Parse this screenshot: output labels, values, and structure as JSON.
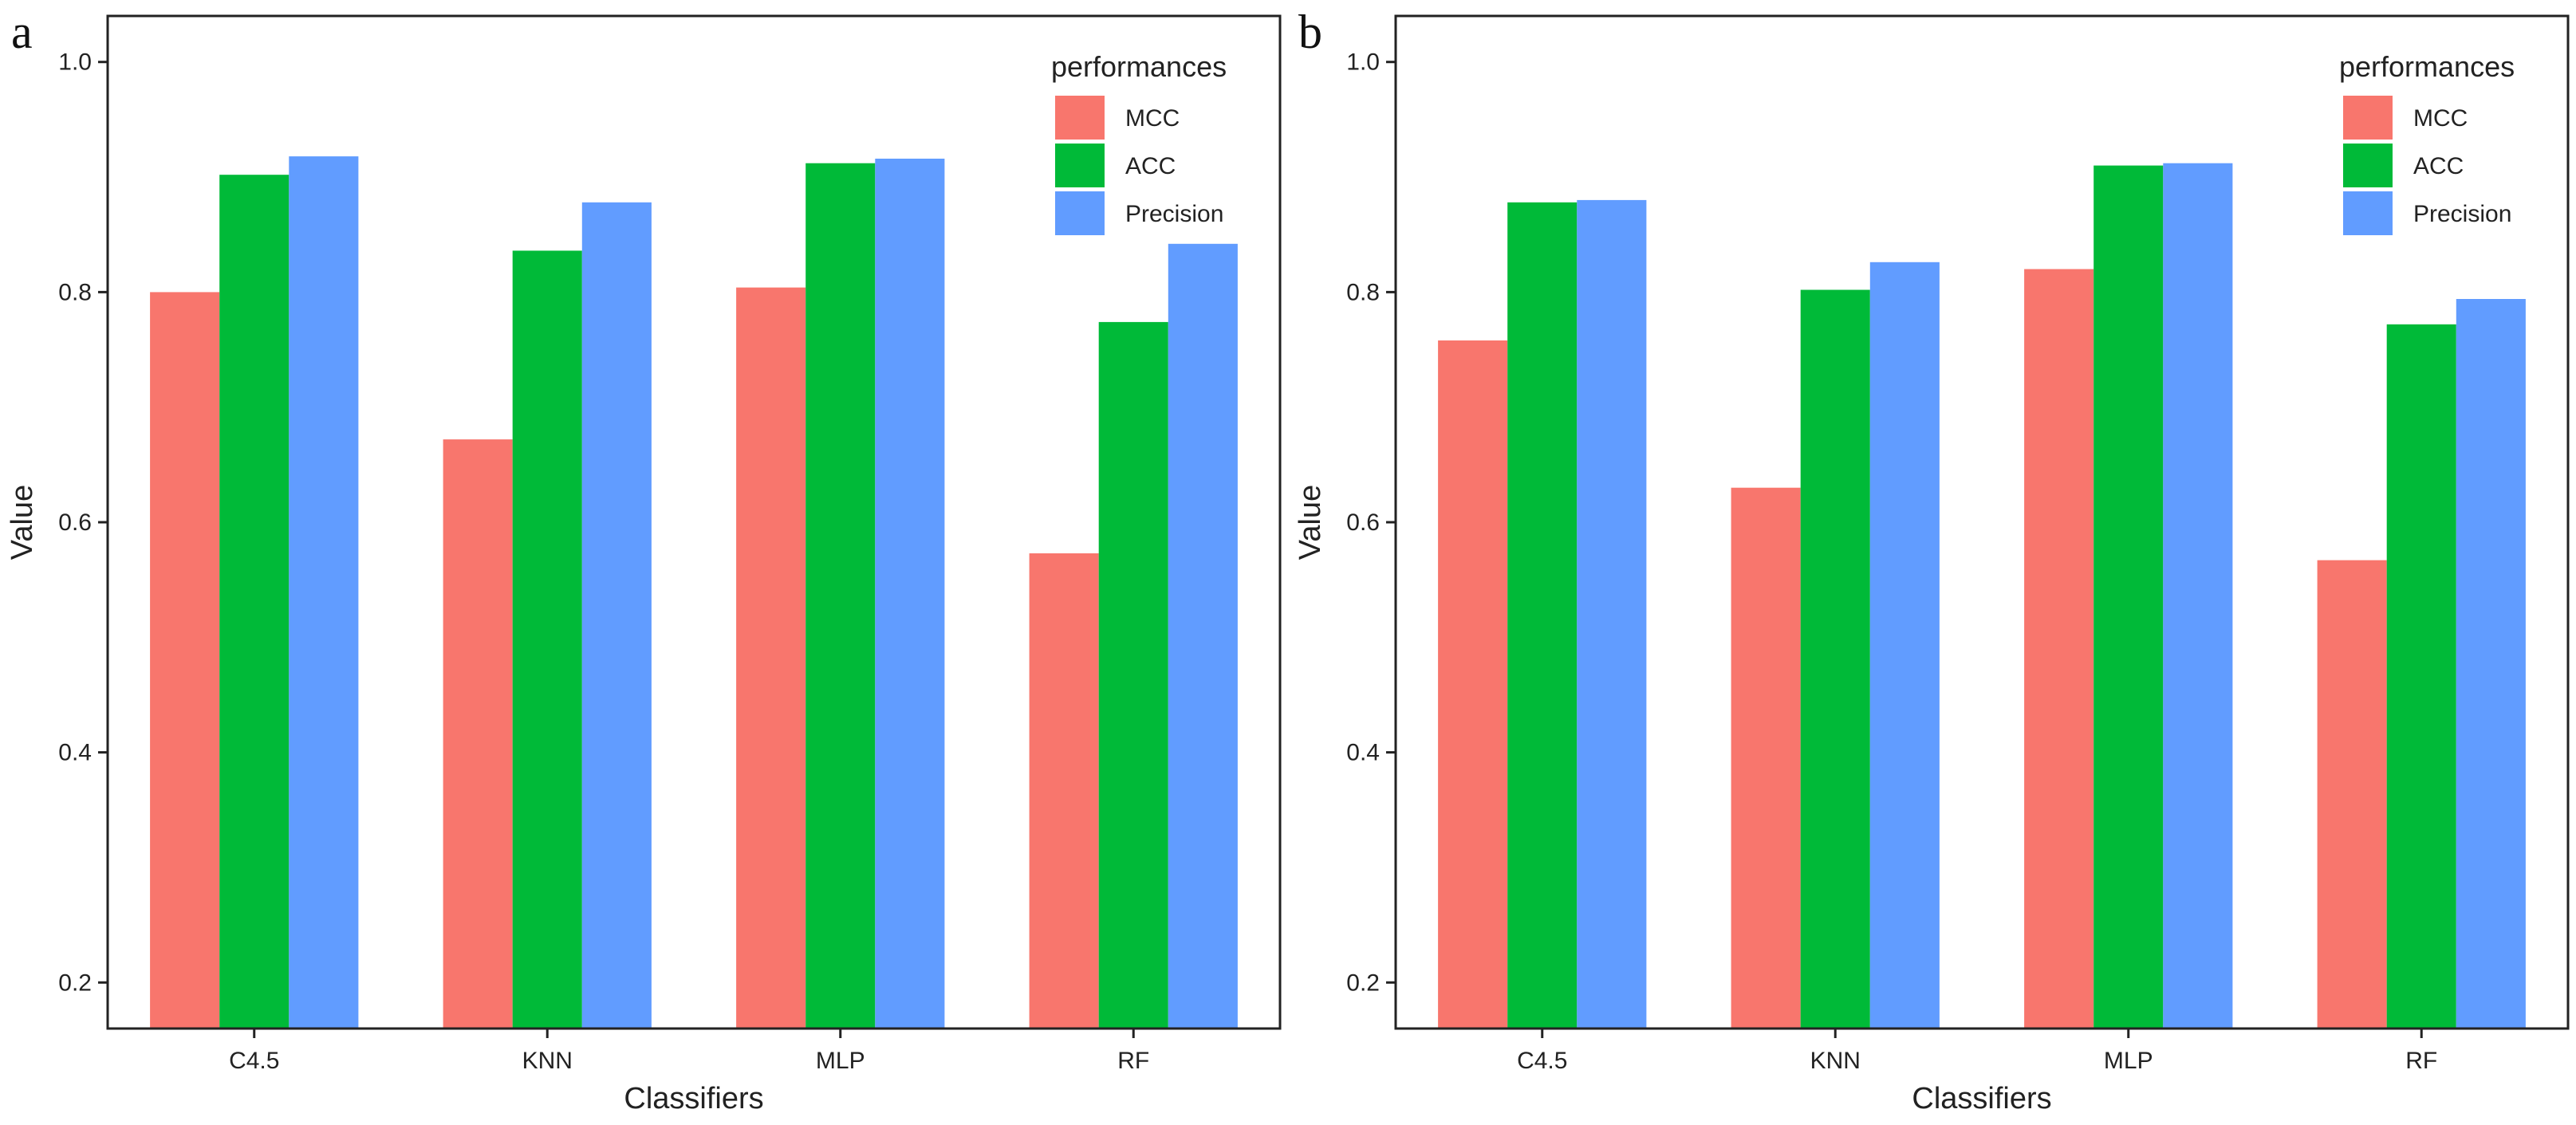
{
  "chart_data": [
    {
      "panel_label": "a",
      "type": "bar",
      "xlabel": "Classifiers",
      "ylabel": "Value",
      "categories": [
        "C4.5",
        "KNN",
        "MLP",
        "RF"
      ],
      "ylim": [
        0.16,
        1.04
      ],
      "yticks": [
        0.2,
        0.4,
        0.6,
        0.8,
        1.0
      ],
      "ytick_labels": [
        "0.2",
        "0.4",
        "0.6",
        "0.8",
        "1.0"
      ],
      "legend_title": "performances",
      "legend_position": "top-right",
      "series": [
        {
          "name": "MCC",
          "color": "#F8766D",
          "values": [
            0.8,
            0.672,
            0.804,
            0.573
          ]
        },
        {
          "name": "ACC",
          "color": "#00BA38",
          "values": [
            0.902,
            0.836,
            0.912,
            0.774
          ]
        },
        {
          "name": "Precision",
          "color": "#619CFF",
          "values": [
            0.918,
            0.878,
            0.916,
            0.842
          ]
        }
      ]
    },
    {
      "panel_label": "b",
      "type": "bar",
      "xlabel": "Classifiers",
      "ylabel": "Value",
      "categories": [
        "C4.5",
        "KNN",
        "MLP",
        "RF"
      ],
      "ylim": [
        0.16,
        1.04
      ],
      "yticks": [
        0.2,
        0.4,
        0.6,
        0.8,
        1.0
      ],
      "ytick_labels": [
        "0.2",
        "0.4",
        "0.6",
        "0.8",
        "1.0"
      ],
      "legend_title": "performances",
      "legend_position": "top-right",
      "series": [
        {
          "name": "MCC",
          "color": "#F8766D",
          "values": [
            0.758,
            0.63,
            0.82,
            0.567
          ]
        },
        {
          "name": "ACC",
          "color": "#00BA38",
          "values": [
            0.878,
            0.802,
            0.91,
            0.772
          ]
        },
        {
          "name": "Precision",
          "color": "#619CFF",
          "values": [
            0.88,
            0.826,
            0.912,
            0.794
          ]
        }
      ]
    }
  ]
}
